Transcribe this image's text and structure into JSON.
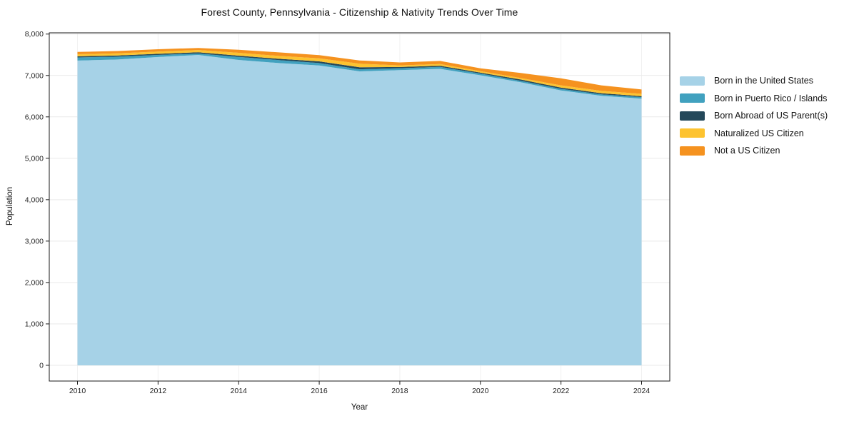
{
  "chart_data": {
    "type": "area",
    "stacked": true,
    "title": "Forest County, Pennsylvania - Citizenship & Nativity Trends Over Time",
    "xlabel": "Year",
    "ylabel": "Population",
    "x": [
      2010,
      2011,
      2012,
      2013,
      2014,
      2015,
      2016,
      2017,
      2018,
      2019,
      2020,
      2021,
      2022,
      2023,
      2024
    ],
    "series": [
      {
        "name": "Born in the United States",
        "color": "#A6D2E7",
        "values": [
          7360,
          7385,
          7445,
          7495,
          7375,
          7300,
          7240,
          7100,
          7130,
          7160,
          7005,
          6835,
          6640,
          6510,
          6440
        ]
      },
      {
        "name": "Born in Puerto Rico / Islands",
        "color": "#41A1BF",
        "values": [
          75,
          70,
          50,
          35,
          74,
          72,
          60,
          50,
          45,
          46,
          41,
          35,
          38,
          34,
          38
        ]
      },
      {
        "name": "Born Abroad of US Parent(s)",
        "color": "#24485A",
        "values": [
          28,
          28,
          28,
          30,
          30,
          30,
          40,
          48,
          30,
          30,
          23,
          33,
          28,
          28,
          22
        ]
      },
      {
        "name": "Naturalized US Citizen",
        "color": "#FDC330",
        "values": [
          50,
          50,
          55,
          55,
          68,
          70,
          75,
          85,
          40,
          40,
          35,
          34,
          55,
          55,
          56
        ]
      },
      {
        "name": "Not a US Citizen",
        "color": "#F5921F",
        "values": [
          55,
          58,
          55,
          50,
          75,
          85,
          75,
          80,
          70,
          75,
          70,
          125,
          170,
          135,
          105
        ]
      }
    ],
    "x_ticks": [
      2010,
      2012,
      2014,
      2016,
      2018,
      2020,
      2022,
      2024
    ],
    "x_tick_labels": [
      "2010",
      "2012",
      "2014",
      "2016",
      "2018",
      "2020",
      "2022",
      "2024"
    ],
    "y_ticks": [
      0,
      1000,
      2000,
      3000,
      4000,
      5000,
      6000,
      7000,
      8000
    ],
    "y_tick_labels": [
      "0",
      "1,000",
      "2,000",
      "3,000",
      "4,000",
      "5,000",
      "6,000",
      "7,000",
      "8,000"
    ],
    "xlim": [
      2009.3,
      2024.7
    ],
    "ylim": [
      -380,
      8030
    ],
    "grid": true,
    "legend_position": "outside-right",
    "colors": {
      "background": "#ffffff",
      "grid": "#e9e9e9",
      "spine": "#1a1a1a",
      "tick_text": "#222222"
    }
  }
}
